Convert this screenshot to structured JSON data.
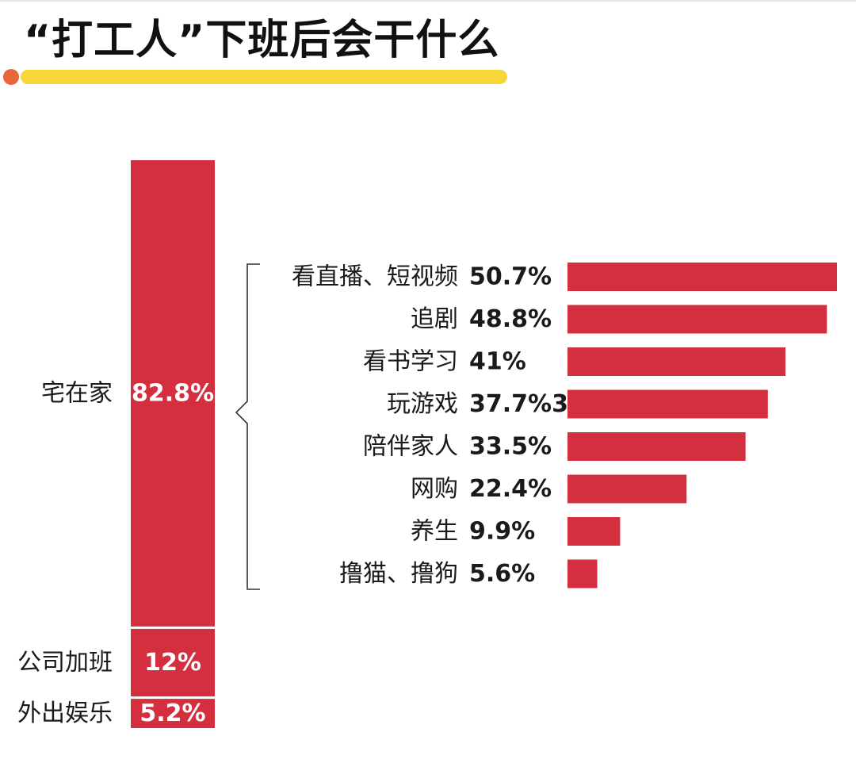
{
  "title": "“打工人”下班后会干什么",
  "colors": {
    "bar": "#d32f3f",
    "accent_line": "#f7d63a",
    "accent_dot": "#e8663b"
  },
  "chart_data": [
    {
      "type": "bar",
      "orientation": "vertical-stacked",
      "categories": [
        "宅在家",
        "公司加班",
        "外出娱乐"
      ],
      "values": [
        82.8,
        12,
        5.2
      ],
      "value_labels": [
        "82.8%",
        "12%",
        "5.2%"
      ],
      "unit": "%"
    },
    {
      "type": "bar",
      "orientation": "horizontal",
      "categories": [
        "看直播、短视频",
        "追剧",
        "看书学习",
        "玩游戏",
        "陪伴家人",
        "网购",
        "养生",
        "撸猫、撸狗"
      ],
      "values": [
        50.7,
        48.8,
        41,
        37.7,
        33.5,
        22.4,
        9.9,
        5.6
      ],
      "value_labels": [
        "50.7%",
        "48.8%",
        "41%",
        "37.7%3",
        "33.5%",
        "22.4%",
        "9.9%",
        "5.6%"
      ],
      "unit": "%"
    }
  ]
}
